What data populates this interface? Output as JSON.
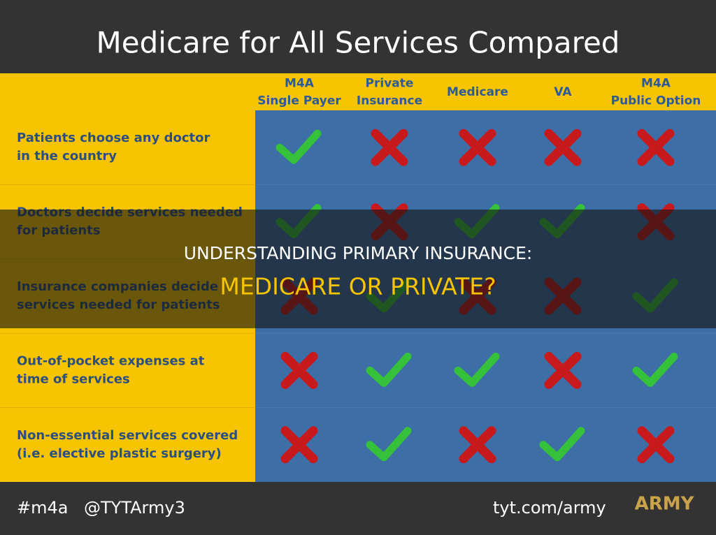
{
  "header": {
    "title": "Medicare for All Services Compared"
  },
  "table": {
    "columns": [
      [
        "M4A",
        "Single Payer"
      ],
      [
        "Private",
        "Insurance"
      ],
      [
        "Medicare"
      ],
      [
        "VA"
      ],
      [
        "M4A",
        "Public Option"
      ]
    ],
    "rows": [
      {
        "label": [
          "Patients choose any doctor",
          "in the country"
        ],
        "cells": [
          true,
          false,
          false,
          false,
          false
        ]
      },
      {
        "label": [
          "Doctors decide services needed",
          "for patients"
        ],
        "cells": [
          true,
          false,
          true,
          true,
          false
        ]
      },
      {
        "label": [
          "Insurance companies decide",
          "services needed for patients"
        ],
        "cells": [
          false,
          true,
          false,
          false,
          true
        ]
      },
      {
        "label": [
          "Out-of-pocket expenses at",
          "time of services"
        ],
        "cells": [
          false,
          true,
          true,
          false,
          true
        ]
      },
      {
        "label": [
          "Non-essential services covered",
          "(i.e. elective plastic surgery)"
        ],
        "cells": [
          false,
          true,
          false,
          true,
          false
        ]
      }
    ]
  },
  "footer": {
    "left": [
      "#m4a",
      "@TYTArmy3"
    ],
    "right": "tyt.com/army",
    "logo": "ARMY"
  },
  "banner": {
    "line1": "UNDERSTANDING PRIMARY INSURANCE:",
    "line2": "MEDICARE OR PRIVATE?"
  }
}
